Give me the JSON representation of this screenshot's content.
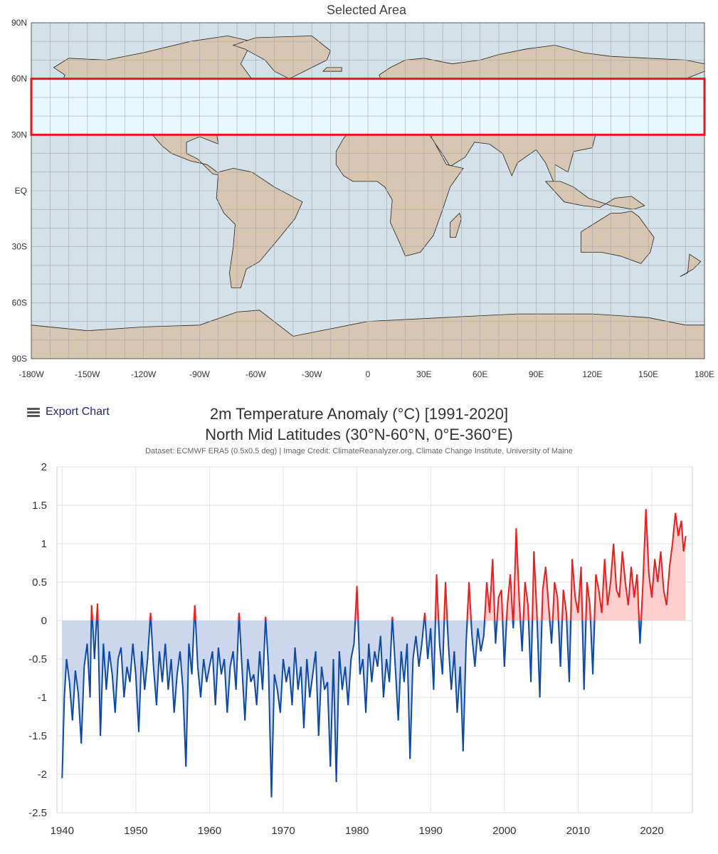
{
  "map": {
    "title": "Selected Area",
    "lat_labels": [
      "90N",
      "60N",
      "30N",
      "EQ",
      "30S",
      "60S",
      "90S"
    ],
    "lon_labels": [
      "-180W",
      "-150W",
      "-120W",
      "-90W",
      "-60W",
      "-30W",
      "0",
      "30E",
      "60E",
      "90E",
      "120E",
      "150E",
      "180E"
    ],
    "selected_lat_range": [
      30,
      60
    ],
    "selected_lon_range": [
      -180,
      180
    ],
    "colors": {
      "ocean": "#d4e1e8",
      "land": "#d7c6b1",
      "selection_fill": "#e8f8ff",
      "selection_border": "#e8161c",
      "grid": "#a9a9a9"
    }
  },
  "toolbar": {
    "export_label": "Export Chart",
    "menu_icon": "hamburger-menu-icon"
  },
  "chart_data": {
    "type": "area",
    "title": "2m Temperature Anomaly (°C) [1991-2020]",
    "subtitle": "North Mid Latitudes (30°N-60°N, 0°E-360°E)",
    "credit": "Dataset: ECMWF ERA5 (0.5x0.5 deg) | Image Credit: ClimateReanalyzer.org, Climate Change Institute, University of Maine",
    "xlim": [
      1939.3,
      2025.5
    ],
    "ylim": [
      -2.5,
      2
    ],
    "xticks": [
      1940,
      1950,
      1960,
      1970,
      1980,
      1990,
      2000,
      2010,
      2020
    ],
    "yticks": [
      2,
      1.5,
      1,
      0.5,
      0,
      -0.5,
      -1,
      -1.5,
      -2,
      -2.5
    ],
    "grid": true,
    "colors": {
      "positive_line": "#ee1c1c",
      "negative_line": "#0d4aa6",
      "positive_fill": "#ffc9c9",
      "negative_fill": "#c6d3ec"
    },
    "series": [
      {
        "x": [
          1940.0,
          1940.3,
          1940.6,
          1941.0,
          1941.4,
          1941.8,
          1942.2,
          1942.6,
          1943.0,
          1943.4,
          1943.8,
          1944.0,
          1944.4,
          1944.8,
          1945.2,
          1945.6,
          1946.0,
          1946.4,
          1946.8,
          1947.2,
          1947.6,
          1948.0,
          1948.4,
          1948.8,
          1949.2,
          1949.6,
          1950.0,
          1950.4,
          1950.8,
          1951.2,
          1951.6,
          1952.0,
          1952.4,
          1952.8,
          1953.2,
          1953.6,
          1954.0,
          1954.4,
          1954.8,
          1955.2,
          1955.6,
          1956.0,
          1956.4,
          1956.8,
          1957.2,
          1957.6,
          1958.0,
          1958.4,
          1958.8,
          1959.2,
          1959.6,
          1960.0,
          1960.4,
          1960.8,
          1961.2,
          1961.6,
          1962.0,
          1962.4,
          1962.8,
          1963.2,
          1963.6,
          1964.0,
          1964.4,
          1964.8,
          1965.2,
          1965.6,
          1966.0,
          1966.4,
          1966.8,
          1967.2,
          1967.6,
          1968.0,
          1968.4,
          1968.8,
          1969.2,
          1969.6,
          1970.0,
          1970.4,
          1970.8,
          1971.2,
          1971.6,
          1972.0,
          1972.4,
          1972.8,
          1973.2,
          1973.6,
          1974.0,
          1974.4,
          1974.8,
          1975.2,
          1975.6,
          1976.0,
          1976.4,
          1976.8,
          1977.2,
          1977.6,
          1978.0,
          1978.4,
          1978.8,
          1979.2,
          1979.6,
          1980.0,
          1980.4,
          1980.8,
          1981.2,
          1981.6,
          1982.0,
          1982.4,
          1982.8,
          1983.2,
          1983.6,
          1984.0,
          1984.4,
          1984.8,
          1985.2,
          1985.6,
          1986.0,
          1986.4,
          1986.8,
          1987.2,
          1987.6,
          1988.0,
          1988.4,
          1988.8,
          1989.2,
          1989.6,
          1990.0,
          1990.4,
          1990.8,
          1991.2,
          1991.6,
          1992.0,
          1992.4,
          1992.8,
          1993.2,
          1993.6,
          1994.0,
          1994.4,
          1994.8,
          1995.2,
          1995.6,
          1996.0,
          1996.4,
          1996.8,
          1997.2,
          1997.6,
          1998.0,
          1998.4,
          1998.8,
          1999.2,
          1999.6,
          2000.0,
          2000.4,
          2000.8,
          2001.2,
          2001.6,
          2002.0,
          2002.4,
          2002.8,
          2003.2,
          2003.6,
          2004.0,
          2004.4,
          2004.8,
          2005.2,
          2005.6,
          2006.0,
          2006.4,
          2006.8,
          2007.2,
          2007.6,
          2008.0,
          2008.4,
          2008.8,
          2009.2,
          2009.6,
          2010.0,
          2010.4,
          2010.8,
          2011.2,
          2011.6,
          2012.0,
          2012.4,
          2012.8,
          2013.2,
          2013.6,
          2014.0,
          2014.4,
          2014.8,
          2015.2,
          2015.6,
          2016.0,
          2016.4,
          2016.8,
          2017.2,
          2017.6,
          2018.0,
          2018.4,
          2018.8,
          2019.2,
          2019.6,
          2020.0,
          2020.4,
          2020.8,
          2021.2,
          2021.6,
          2022.0,
          2022.4,
          2022.8,
          2023.2,
          2023.6,
          2024.0,
          2024.3,
          2024.6
        ],
        "y": [
          -2.05,
          -1.0,
          -0.5,
          -0.8,
          -1.3,
          -0.65,
          -0.95,
          -1.6,
          -0.6,
          -0.3,
          -1.0,
          0.2,
          -0.5,
          0.22,
          -1.5,
          -0.3,
          -0.9,
          -0.4,
          -0.7,
          -1.2,
          -0.5,
          -0.35,
          -1.0,
          -0.6,
          -0.8,
          -0.3,
          -0.7,
          -1.45,
          -0.4,
          -0.9,
          -0.5,
          0.1,
          -0.6,
          -1.1,
          -0.4,
          -0.8,
          -0.3,
          -0.9,
          -0.5,
          -1.2,
          -0.7,
          -0.4,
          -0.9,
          -1.9,
          -0.3,
          -0.7,
          0.2,
          -0.6,
          -1.0,
          -0.5,
          -0.8,
          -0.6,
          -0.4,
          -1.1,
          -0.35,
          -0.7,
          -0.5,
          -1.2,
          -0.6,
          -0.4,
          -0.9,
          0.1,
          -0.6,
          -1.3,
          -0.5,
          -0.8,
          -0.7,
          -1.1,
          -0.4,
          -0.9,
          0.05,
          -0.6,
          -2.3,
          -0.7,
          -0.9,
          -1.2,
          -0.5,
          -0.8,
          -0.6,
          -1.1,
          -0.35,
          -0.9,
          -0.6,
          -1.4,
          -0.5,
          -1.0,
          -0.7,
          -0.4,
          -1.5,
          -0.6,
          -0.9,
          -0.8,
          -1.9,
          -0.5,
          -2.1,
          -0.4,
          -0.9,
          -0.6,
          -1.1,
          -0.5,
          -0.3,
          0.45,
          -0.7,
          -0.5,
          -1.2,
          -0.3,
          -0.8,
          -0.4,
          -0.6,
          -0.2,
          -1.0,
          -0.5,
          -0.8,
          0.05,
          -0.6,
          -1.3,
          -0.4,
          -0.8,
          -0.3,
          -1.8,
          -0.5,
          -0.2,
          -0.6,
          -0.3,
          0.1,
          -0.5,
          -0.1,
          -0.9,
          0.6,
          -0.3,
          -0.7,
          0.5,
          -0.3,
          -0.9,
          -0.4,
          -1.2,
          -0.6,
          -1.7,
          -0.3,
          0.5,
          -0.2,
          -0.6,
          -0.1,
          -0.4,
          -0.2,
          0.5,
          0.1,
          0.8,
          -0.3,
          0.3,
          0.4,
          -0.6,
          0.2,
          0.6,
          -0.1,
          1.2,
          0.3,
          -0.4,
          0.5,
          0.2,
          -0.8,
          0.9,
          0.1,
          -1.0,
          0.4,
          0.7,
          0.2,
          -0.3,
          0.5,
          0.3,
          -0.6,
          0.4,
          0.1,
          -0.8,
          0.8,
          0.3,
          0.1,
          0.7,
          -0.9,
          0.5,
          0.2,
          -0.7,
          0.6,
          0.4,
          0.1,
          0.8,
          0.2,
          0.5,
          1.0,
          0.4,
          0.3,
          0.9,
          0.5,
          0.2,
          0.7,
          0.3,
          0.6,
          -0.3,
          0.5,
          1.45,
          0.6,
          0.3,
          0.8,
          0.5,
          0.9,
          0.4,
          0.2,
          0.7,
          1.0,
          1.4,
          1.1,
          1.3,
          0.9,
          1.1
        ]
      }
    ]
  }
}
